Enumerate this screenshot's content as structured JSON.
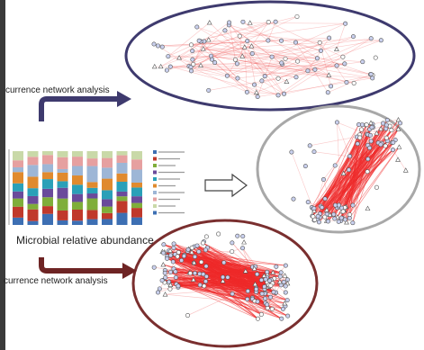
{
  "labels": {
    "top_arrow": "currence network analysis",
    "middle_caption": "Microbial relative abundance",
    "bottom_arrow": "currence network analysis"
  },
  "colors": {
    "background": "#3a3a3a",
    "panel": "#ffffff",
    "top_ellipse": "#3e3a6e",
    "right_ellipse": "#a8a8a8",
    "bottom_ellipse": "#7a2f2f",
    "top_arrow": "#3e3a6e",
    "bottom_arrow": "#6e2424",
    "edge": "#f06060",
    "node": "#6d7fbf"
  },
  "bar_chart": {
    "type": "stacked-bar",
    "bar_count": 9,
    "segment_colors": [
      "#3d6fb3",
      "#c0392b",
      "#7fae3a",
      "#6a4a9b",
      "#2aa0b8",
      "#e08a2e",
      "#9db6d6",
      "#e6a0a0",
      "#c9d9a8"
    ],
    "legend_items": [
      "",
      "",
      "",
      "",
      "",
      "",
      "",
      "",
      "",
      ""
    ]
  },
  "networks": [
    {
      "name": "top",
      "edges_visible": "sparse"
    },
    {
      "name": "right",
      "edges_visible": "clustered"
    },
    {
      "name": "bottom",
      "edges_visible": "dense"
    }
  ]
}
